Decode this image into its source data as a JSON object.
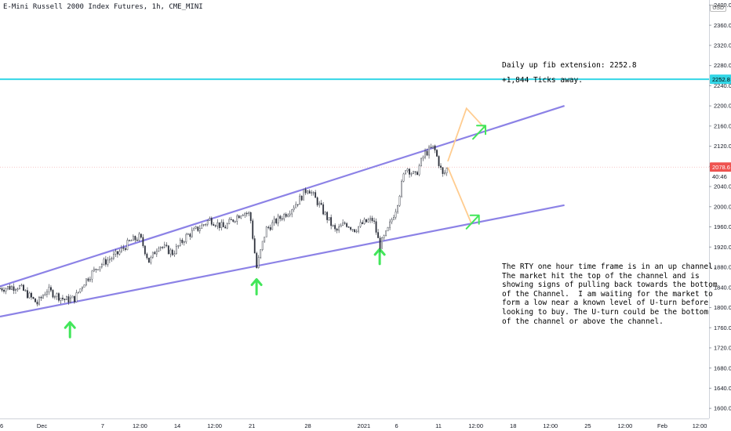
{
  "header": {
    "title": "E-Mini Russell 2000 Index Futures, 1h, CME_MINI"
  },
  "currency_badge": "USD",
  "annotations": {
    "fib_label": "Daily up fib extension: 2252.8",
    "ticks_label": "+1,844 Ticks away.",
    "note_text": "The RTY one hour time frame is in an up channel.\nThe market hit the top of the channel and is\nshowing signs of pulling back towards the bottom\nof the Channel.  I am waiting for the market to\nform a low near a known level of U-turn before\nlooking to buy. The U-turn could be the bottom\nof the channel or above the channel."
  },
  "price_badges": {
    "fib": "2252.8",
    "last": "2078.6",
    "countdown": "40:46"
  },
  "colors": {
    "channel": "#8c82e6",
    "fib_line": "#33d6e6",
    "projection": "#ffcc8f",
    "arrow": "#42e65a",
    "candle": "#2a2e39",
    "last_price": "#ef5350"
  },
  "chart_data": {
    "type": "candlestick",
    "y_ticks": [
      1600,
      1640,
      1680,
      1720,
      1760,
      1800,
      1840,
      1880,
      1920,
      1960,
      2000,
      2040,
      2080,
      2120,
      2160,
      2200,
      2240,
      2280,
      2320,
      2360,
      2400
    ],
    "y_tick_labels": [
      "1600.0",
      "1640.0",
      "1680.0",
      "1720.0",
      "1760.0",
      "1800.0",
      "1840.0",
      "1880.0",
      "1920.0",
      "1960.0",
      "2000.0",
      "2040.0",
      "2080.0",
      "2120.0",
      "2160.0",
      "2200.0",
      "2240.0",
      "2280.0",
      "2320.0",
      "2360.0",
      "2400.0"
    ],
    "ylim": [
      1580,
      2410
    ],
    "x_labels": [
      {
        "t": 0,
        "label": "26"
      },
      {
        "t": 4.5,
        "label": "Dec"
      },
      {
        "t": 11,
        "label": "7"
      },
      {
        "t": 15,
        "label": "12:00"
      },
      {
        "t": 19,
        "label": "14"
      },
      {
        "t": 23,
        "label": "12:00"
      },
      {
        "t": 27,
        "label": "21"
      },
      {
        "t": 33,
        "label": "28"
      },
      {
        "t": 39,
        "label": "2021"
      },
      {
        "t": 42.5,
        "label": "6"
      },
      {
        "t": 47,
        "label": "11"
      },
      {
        "t": 51,
        "label": "12:00"
      },
      {
        "t": 55,
        "label": "18"
      },
      {
        "t": 59,
        "label": "12:00"
      },
      {
        "t": 63,
        "label": "25"
      },
      {
        "t": 67,
        "label": "12:00"
      },
      {
        "t": 71,
        "label": "Feb"
      },
      {
        "t": 75,
        "label": "12:00"
      }
    ],
    "xlim": [
      0,
      76
    ],
    "price_path": [
      [
        0,
        1838
      ],
      [
        2,
        1842
      ],
      [
        4,
        1808
      ],
      [
        5,
        1835
      ],
      [
        7,
        1815
      ],
      [
        8,
        1818
      ],
      [
        9,
        1850
      ],
      [
        10.5,
        1882
      ],
      [
        12.5,
        1905
      ],
      [
        14,
        1932
      ],
      [
        15,
        1940
      ],
      [
        16,
        1890
      ],
      [
        17,
        1925
      ],
      [
        18.5,
        1908
      ],
      [
        20,
        1942
      ],
      [
        21.5,
        1960
      ],
      [
        22.5,
        1975
      ],
      [
        24,
        1958
      ],
      [
        25,
        1975
      ],
      [
        26,
        1990
      ],
      [
        26.8,
        1985
      ],
      [
        27.5,
        1878
      ],
      [
        28.5,
        1955
      ],
      [
        29.5,
        1970
      ],
      [
        31,
        1992
      ],
      [
        32,
        2012
      ],
      [
        33,
        2038
      ],
      [
        34,
        2010
      ],
      [
        35,
        1980
      ],
      [
        36,
        1950
      ],
      [
        37,
        1968
      ],
      [
        38,
        1955
      ],
      [
        39,
        1968
      ],
      [
        40,
        1975
      ],
      [
        40.7,
        1922
      ],
      [
        41.5,
        1950
      ],
      [
        42.5,
        2000
      ],
      [
        43.5,
        2080
      ],
      [
        44.5,
        2060
      ],
      [
        45.5,
        2105
      ],
      [
        46.5,
        2118
      ],
      [
        47.5,
        2060
      ],
      [
        48,
        2080
      ]
    ],
    "last_price": 2078.6,
    "fib_level": 2252.8,
    "channel_upper": [
      [
        0,
        1842
      ],
      [
        60.5,
        2200
      ]
    ],
    "channel_lower": [
      [
        0,
        1782
      ],
      [
        60.5,
        2003
      ]
    ],
    "projection_up": [
      [
        48,
        2090
      ],
      [
        50,
        2195
      ],
      [
        52,
        2155
      ]
    ],
    "projection_down": [
      [
        48,
        2078
      ],
      [
        50.5,
        1968
      ]
    ],
    "arrows": [
      {
        "t": 7.5,
        "y": 1760,
        "dir": "up"
      },
      {
        "t": 27.5,
        "y": 1845,
        "dir": "up"
      },
      {
        "t": 40.7,
        "y": 1905,
        "dir": "up"
      },
      {
        "t": 51.2,
        "y": 2150,
        "dir": "up-right"
      },
      {
        "t": 50.5,
        "y": 1972,
        "dir": "up-right"
      }
    ]
  }
}
